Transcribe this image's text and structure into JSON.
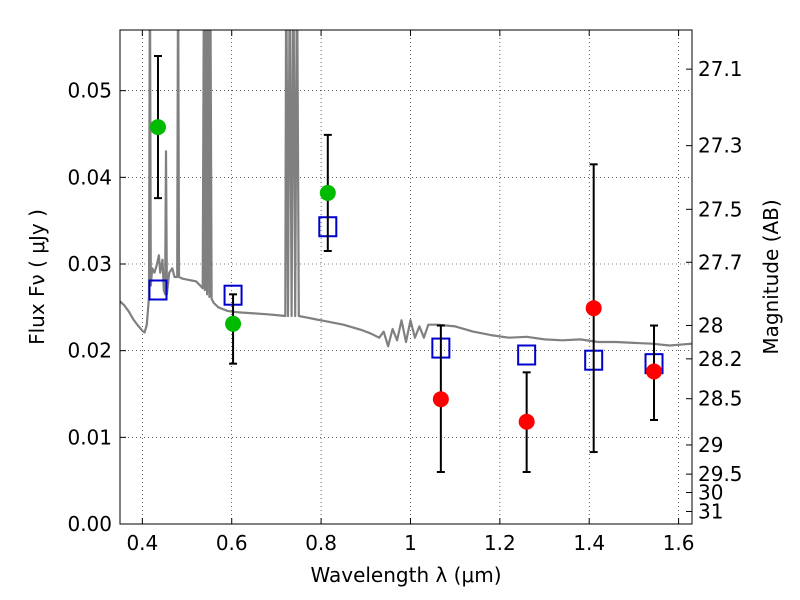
{
  "chart_data": {
    "type": "scatter",
    "xlabel": "Wavelength  λ (μm)",
    "ylabel_left": "Flux  Fν  ( μJy )",
    "ylabel_right": "Magnitude (AB)",
    "xlim": [
      0.35,
      1.63
    ],
    "ylim": [
      0.0,
      0.057
    ],
    "grid": true,
    "x_ticks": [
      {
        "value": 0.4,
        "label": "0.4"
      },
      {
        "value": 0.6,
        "label": "0.6"
      },
      {
        "value": 0.8,
        "label": "0.8"
      },
      {
        "value": 1.0,
        "label": "1"
      },
      {
        "value": 1.2,
        "label": "1.2"
      },
      {
        "value": 1.4,
        "label": "1.4"
      },
      {
        "value": 1.6,
        "label": "1.6"
      }
    ],
    "y_ticks": [
      {
        "value": 0.0,
        "label": "0.00"
      },
      {
        "value": 0.01,
        "label": "0.01"
      },
      {
        "value": 0.02,
        "label": "0.02"
      },
      {
        "value": 0.03,
        "label": "0.03"
      },
      {
        "value": 0.04,
        "label": "0.04"
      },
      {
        "value": 0.05,
        "label": "0.05"
      }
    ],
    "right_ticks": [
      {
        "mag": 27.1,
        "label": "27.1"
      },
      {
        "mag": 27.3,
        "label": "27.3"
      },
      {
        "mag": 27.5,
        "label": "27.5"
      },
      {
        "mag": 27.7,
        "label": "27.7"
      },
      {
        "mag": 28.0,
        "label": "28"
      },
      {
        "mag": 28.2,
        "label": "28.2"
      },
      {
        "mag": 28.5,
        "label": "28.5"
      },
      {
        "mag": 29.0,
        "label": "29"
      },
      {
        "mag": 29.5,
        "label": "29.5"
      },
      {
        "mag": 30.0,
        "label": "30"
      },
      {
        "mag": 31.0,
        "label": "31"
      }
    ],
    "series": [
      {
        "kind": "line",
        "color": "#808080",
        "points": [
          [
            0.35,
            0.0257
          ],
          [
            0.36,
            0.0252
          ],
          [
            0.37,
            0.0245
          ],
          [
            0.38,
            0.0236
          ],
          [
            0.39,
            0.0229
          ],
          [
            0.4,
            0.0223
          ],
          [
            0.405,
            0.0221
          ],
          [
            0.41,
            0.023
          ],
          [
            0.415,
            0.0262
          ],
          [
            0.417,
            0.066
          ],
          [
            0.419,
            0.0275
          ],
          [
            0.422,
            0.0295
          ],
          [
            0.427,
            0.029
          ],
          [
            0.432,
            0.0298
          ],
          [
            0.437,
            0.031
          ],
          [
            0.44,
            0.029
          ],
          [
            0.445,
            0.0305
          ],
          [
            0.448,
            0.027
          ],
          [
            0.451,
            0.0265
          ],
          [
            0.453,
            0.043
          ],
          [
            0.455,
            0.0265
          ],
          [
            0.46,
            0.029
          ],
          [
            0.467,
            0.0295
          ],
          [
            0.472,
            0.0285
          ],
          [
            0.478,
            0.0285
          ],
          [
            0.48,
            0.066
          ],
          [
            0.482,
            0.0285
          ],
          [
            0.49,
            0.0283
          ],
          [
            0.5,
            0.0282
          ],
          [
            0.51,
            0.0281
          ],
          [
            0.52,
            0.028
          ],
          [
            0.53,
            0.0275
          ],
          [
            0.535,
            0.0272
          ],
          [
            0.538,
            0.066
          ],
          [
            0.54,
            0.027
          ],
          [
            0.542,
            0.066
          ],
          [
            0.545,
            0.0265
          ],
          [
            0.548,
            0.066
          ],
          [
            0.55,
            0.0262
          ],
          [
            0.552,
            0.066
          ],
          [
            0.555,
            0.026
          ],
          [
            0.56,
            0.0255
          ],
          [
            0.57,
            0.025
          ],
          [
            0.58,
            0.0248
          ],
          [
            0.59,
            0.0246
          ],
          [
            0.6,
            0.0245
          ],
          [
            0.62,
            0.0244
          ],
          [
            0.65,
            0.0243
          ],
          [
            0.68,
            0.0242
          ],
          [
            0.7,
            0.0241
          ],
          [
            0.72,
            0.024
          ],
          [
            0.722,
            0.066
          ],
          [
            0.726,
            0.024
          ],
          [
            0.73,
            0.066
          ],
          [
            0.734,
            0.024
          ],
          [
            0.738,
            0.066
          ],
          [
            0.742,
            0.024
          ],
          [
            0.746,
            0.066
          ],
          [
            0.75,
            0.024
          ],
          [
            0.77,
            0.0238
          ],
          [
            0.79,
            0.0236
          ],
          [
            0.81,
            0.0234
          ],
          [
            0.83,
            0.0232
          ],
          [
            0.85,
            0.023
          ],
          [
            0.87,
            0.0227
          ],
          [
            0.89,
            0.0224
          ],
          [
            0.91,
            0.022
          ],
          [
            0.93,
            0.0215
          ],
          [
            0.94,
            0.0222
          ],
          [
            0.95,
            0.0205
          ],
          [
            0.96,
            0.0225
          ],
          [
            0.97,
            0.0212
          ],
          [
            0.98,
            0.0235
          ],
          [
            0.99,
            0.021
          ],
          [
            1.0,
            0.0235
          ],
          [
            1.01,
            0.0215
          ],
          [
            1.02,
            0.0228
          ],
          [
            1.03,
            0.0215
          ],
          [
            1.04,
            0.023
          ],
          [
            1.06,
            0.023
          ],
          [
            1.1,
            0.0228
          ],
          [
            1.14,
            0.0222
          ],
          [
            1.18,
            0.0218
          ],
          [
            1.22,
            0.0215
          ],
          [
            1.26,
            0.0216
          ],
          [
            1.3,
            0.0213
          ],
          [
            1.34,
            0.0212
          ],
          [
            1.38,
            0.0213
          ],
          [
            1.42,
            0.021
          ],
          [
            1.46,
            0.021
          ],
          [
            1.5,
            0.0209
          ],
          [
            1.54,
            0.0208
          ],
          [
            1.58,
            0.0206
          ],
          [
            1.63,
            0.0208
          ]
        ]
      },
      {
        "kind": "squares",
        "color": "#0000cc",
        "points": [
          [
            0.435,
            0.027
          ],
          [
            0.603,
            0.0264
          ],
          [
            0.815,
            0.0343
          ],
          [
            1.068,
            0.0203
          ],
          [
            1.26,
            0.0195
          ],
          [
            1.41,
            0.0189
          ],
          [
            1.545,
            0.0185
          ]
        ]
      },
      {
        "kind": "circles",
        "color": "#00bb00",
        "points": [
          {
            "x": 0.435,
            "y": 0.0458,
            "err_lo": 0.0376,
            "err_hi": 0.054
          },
          {
            "x": 0.603,
            "y": 0.0231,
            "err_lo": 0.0185,
            "err_hi": 0.0265
          },
          {
            "x": 0.815,
            "y": 0.0382,
            "err_lo": 0.0315,
            "err_hi": 0.0449
          }
        ]
      },
      {
        "kind": "circles",
        "color": "#ff0000",
        "points": [
          {
            "x": 1.068,
            "y": 0.0144,
            "err_lo": 0.006,
            "err_hi": 0.0229
          },
          {
            "x": 1.26,
            "y": 0.0118,
            "err_lo": 0.006,
            "err_hi": 0.0175
          },
          {
            "x": 1.41,
            "y": 0.0249,
            "err_lo": 0.0083,
            "err_hi": 0.0415
          },
          {
            "x": 1.545,
            "y": 0.0176,
            "err_lo": 0.012,
            "err_hi": 0.0229
          }
        ]
      }
    ]
  }
}
